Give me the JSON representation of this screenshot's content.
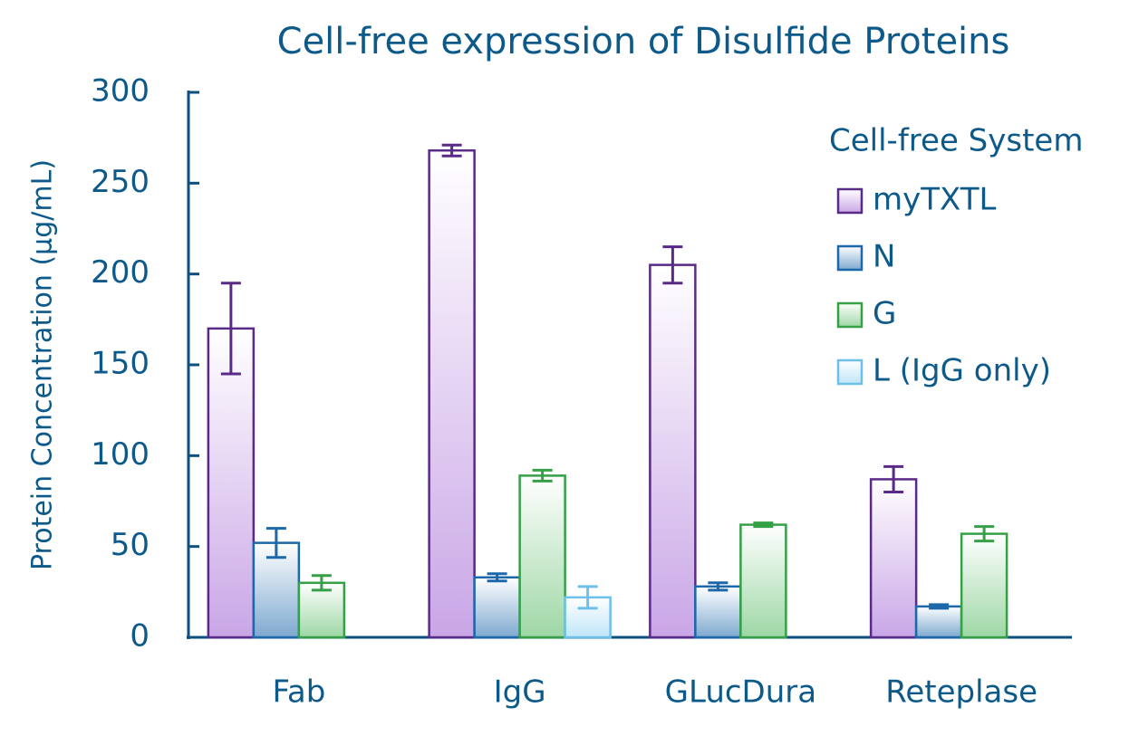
{
  "chart_data": {
    "type": "bar",
    "title": "Cell-free expression of Disulfide Proteins",
    "y_label": "Protein Concentration (µg/mL)",
    "categories": [
      "Fab",
      "IgG",
      "GLucDura",
      "Reteplase"
    ],
    "series": [
      {
        "name": "myTXTL",
        "color": "#5a2a88",
        "fill_color": "#c9a6e6",
        "values": [
          170,
          268,
          205,
          87
        ],
        "errors": [
          25,
          3,
          10,
          7
        ]
      },
      {
        "name": "N",
        "color": "#1c68aa",
        "fill_color": "#7ea9cf",
        "values": [
          52,
          33,
          28,
          17
        ],
        "errors": [
          8,
          2,
          2,
          1
        ]
      },
      {
        "name": "G",
        "color": "#35a046",
        "fill_color": "#9ed7a5",
        "values": [
          30,
          89,
          62,
          57
        ],
        "errors": [
          4,
          3,
          1,
          4
        ]
      },
      {
        "name": "L  (IgG only)",
        "color": "#6cc0ea",
        "fill_color": "#bfe6f8",
        "values": [
          null,
          22,
          null,
          null
        ],
        "errors": [
          null,
          6,
          null,
          null
        ]
      }
    ],
    "legend_title": "Cell-free System",
    "legend": "upper right",
    "ylim": [
      0,
      300
    ],
    "yticks": [
      0,
      50,
      100,
      150,
      200,
      250,
      300
    ]
  }
}
